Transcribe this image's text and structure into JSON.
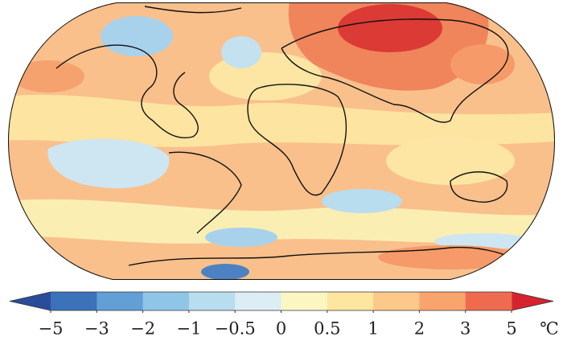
{
  "colorbar": {
    "ticks": [
      {
        "value": -5,
        "label": "−5"
      },
      {
        "value": -3,
        "label": "−3"
      },
      {
        "value": -2,
        "label": "−2"
      },
      {
        "value": -1,
        "label": "−1"
      },
      {
        "value": -0.5,
        "label": "−0.5"
      },
      0,
      0.5,
      1,
      2,
      3,
      5
    ],
    "unit": "℃",
    "colors": [
      "#2b4c9b",
      "#3b72b9",
      "#619fd5",
      "#8fc5e7",
      "#b8ddef",
      "#dcedf4",
      "#fbf6c2",
      "#fde6a0",
      "#fcc98a",
      "#f9a46d",
      "#ef6b50",
      "#d6232f"
    ]
  }
}
